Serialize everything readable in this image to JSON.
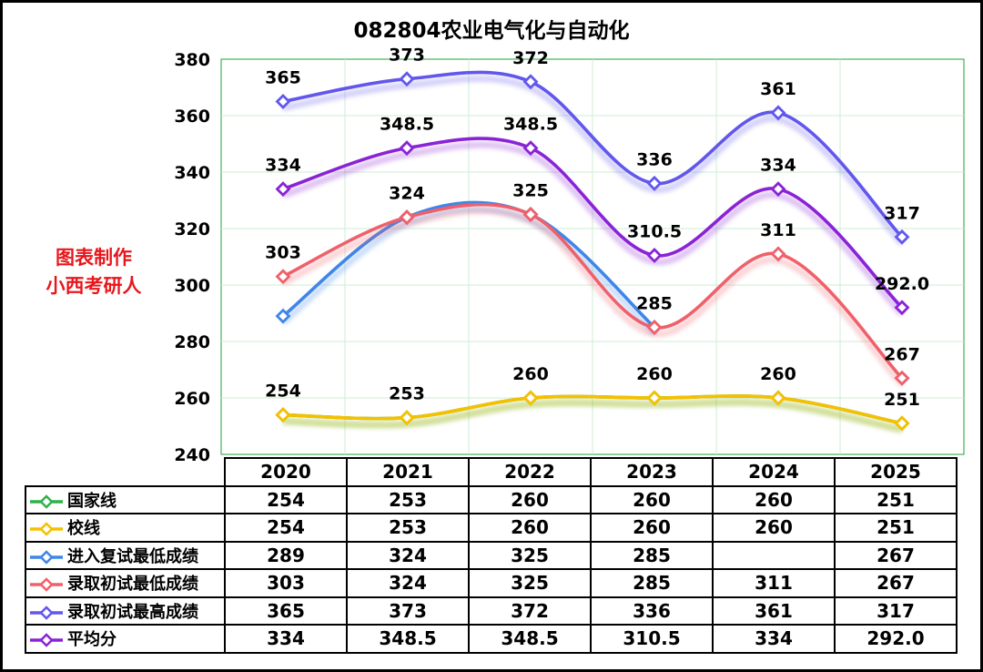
{
  "title": "082804农业电气化与自动化",
  "watermark": {
    "line1": "图表制作",
    "line2": "小西考研人"
  },
  "chart_data": {
    "type": "line",
    "title": "082804农业电气化与自动化",
    "categories": [
      "2020",
      "2021",
      "2022",
      "2023",
      "2024",
      "2025"
    ],
    "ylim": [
      240,
      380
    ],
    "yticks": [
      240,
      260,
      280,
      300,
      320,
      340,
      360,
      380
    ],
    "grid": true,
    "series": [
      {
        "name": "国家线",
        "color": "#2fb24a",
        "values": [
          254,
          253,
          260,
          260,
          260,
          251
        ],
        "labels": [
          "254",
          "253",
          "260",
          "260",
          "260",
          "251"
        ],
        "show_labels": false
      },
      {
        "name": "校线",
        "color": "#f5c000",
        "values": [
          254,
          253,
          260,
          260,
          260,
          251
        ],
        "labels": [
          "254",
          "253",
          "260",
          "260",
          "260",
          "251"
        ],
        "show_labels": true
      },
      {
        "name": "进入复试最低成绩",
        "color": "#3f86e8",
        "values": [
          289,
          324,
          325,
          285,
          null,
          267
        ],
        "labels": [
          "289",
          "324",
          "325",
          "285",
          "",
          "267"
        ],
        "show_labels": false
      },
      {
        "name": "录取初试最低成绩",
        "color": "#f0606a",
        "values": [
          303,
          324,
          325,
          285,
          311,
          267
        ],
        "labels": [
          "303",
          "324",
          "325",
          "285",
          "311",
          "267"
        ],
        "show_labels": true
      },
      {
        "name": "录取初试最高成绩",
        "color": "#6257ec",
        "values": [
          365,
          373,
          372,
          336,
          361,
          317
        ],
        "labels": [
          "365",
          "373",
          "372",
          "336",
          "361",
          "317"
        ],
        "show_labels": true
      },
      {
        "name": "平均分",
        "color": "#8a23d6",
        "values": [
          334,
          348.5,
          348.5,
          310.5,
          334,
          292.0
        ],
        "labels": [
          "334",
          "348.5",
          "348.5",
          "310.5",
          "334",
          "292.0"
        ],
        "show_labels": true
      }
    ]
  },
  "table": {
    "headers": [
      "2020",
      "2021",
      "2022",
      "2023",
      "2024",
      "2025"
    ],
    "rows": [
      {
        "label": "国家线",
        "cells": [
          "254",
          "253",
          "260",
          "260",
          "260",
          "251"
        ]
      },
      {
        "label": "校线",
        "cells": [
          "254",
          "253",
          "260",
          "260",
          "260",
          "251"
        ]
      },
      {
        "label": "进入复试最低成绩",
        "cells": [
          "289",
          "324",
          "325",
          "285",
          "",
          "267"
        ]
      },
      {
        "label": "录取初试最低成绩",
        "cells": [
          "303",
          "324",
          "325",
          "285",
          "311",
          "267"
        ]
      },
      {
        "label": "录取初试最高成绩",
        "cells": [
          "365",
          "373",
          "372",
          "336",
          "361",
          "317"
        ]
      },
      {
        "label": "平均分",
        "cells": [
          "334",
          "348.5",
          "348.5",
          "310.5",
          "334",
          "292.0"
        ]
      }
    ]
  }
}
